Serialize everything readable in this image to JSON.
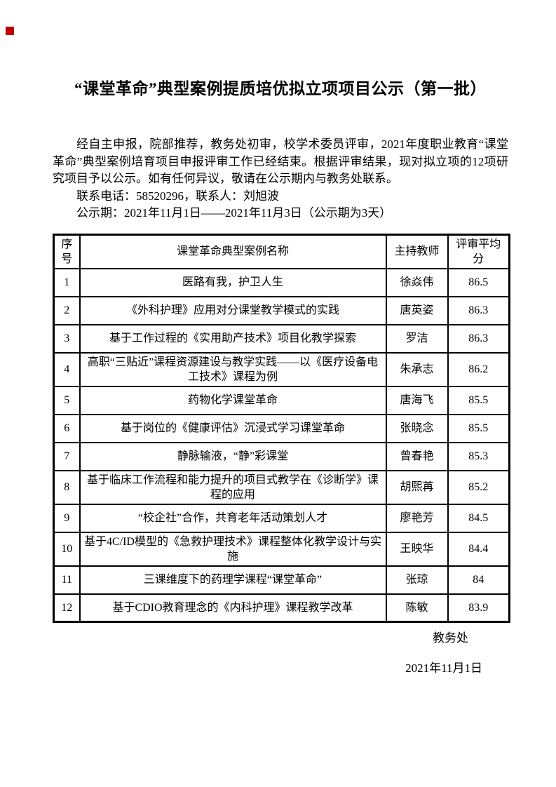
{
  "page": {
    "title": "“课堂革命”典型案例提质培优拟立项项目公示（第一批）",
    "intro_paragraph": "经自主申报，院部推荐，教务处初审，校学术委员评审，2021年度职业教育“课堂革命”典型案例培育项目申报评审工作已经结束。根据评审结果，现对拟立项的12项研究项目予以公示。如有任何异议，敬请在公示期内与教务处联系。",
    "contact_line": "联系电话：58520296，联系人：刘旭波",
    "period_line": "公示期：2021年11月1日——2021年11月3日（公示期为3天）",
    "signature": "教务处",
    "sign_date": "2021年11月1日",
    "marker_color": "#c00000"
  },
  "table": {
    "headers": [
      "序号",
      "课堂革命典型案例名称",
      "主持教师",
      "评审平均分"
    ],
    "rows": [
      {
        "no": "1",
        "name": "医路有我，护卫人生",
        "teacher": "徐焱伟",
        "score": "86.5"
      },
      {
        "no": "2",
        "name": "《外科护理》应用对分课堂教学模式的实践",
        "teacher": "唐英姿",
        "score": "86.3"
      },
      {
        "no": "3",
        "name": "基于工作过程的《实用助产技术》项目化教学探索",
        "teacher": "罗洁",
        "score": "86.3"
      },
      {
        "no": "4",
        "name": "高职“三贴近”课程资源建设与教学实践——以《医疗设备电工技术》课程为例",
        "teacher": "朱承志",
        "score": "86.2"
      },
      {
        "no": "5",
        "name": "药物化学课堂革命",
        "teacher": "唐海飞",
        "score": "85.5"
      },
      {
        "no": "6",
        "name": "基于岗位的《健康评估》沉浸式学习课堂革命",
        "teacher": "张晓念",
        "score": "85.5"
      },
      {
        "no": "7",
        "name": "静脉输液，“静”彩课堂",
        "teacher": "曾春艳",
        "score": "85.3"
      },
      {
        "no": "8",
        "name": "基于临床工作流程和能力提升的项目式教学在《诊断学》课程的应用",
        "teacher": "胡熙苒",
        "score": "85.2"
      },
      {
        "no": "9",
        "name": "“校企社”合作，共育老年活动策划人才",
        "teacher": "廖艳芳",
        "score": "84.5"
      },
      {
        "no": "10",
        "name": "基于4C/ID模型的《急救护理技术》课程整体化教学设计与实施",
        "teacher": "王映华",
        "score": "84.4"
      },
      {
        "no": "11",
        "name": "三课维度下的药理学课程“课堂革命”",
        "teacher": "张琼",
        "score": "84"
      },
      {
        "no": "12",
        "name": "基于CDIO教育理念的《内科护理》课程教学改革",
        "teacher": "陈敏",
        "score": "83.9"
      }
    ]
  }
}
